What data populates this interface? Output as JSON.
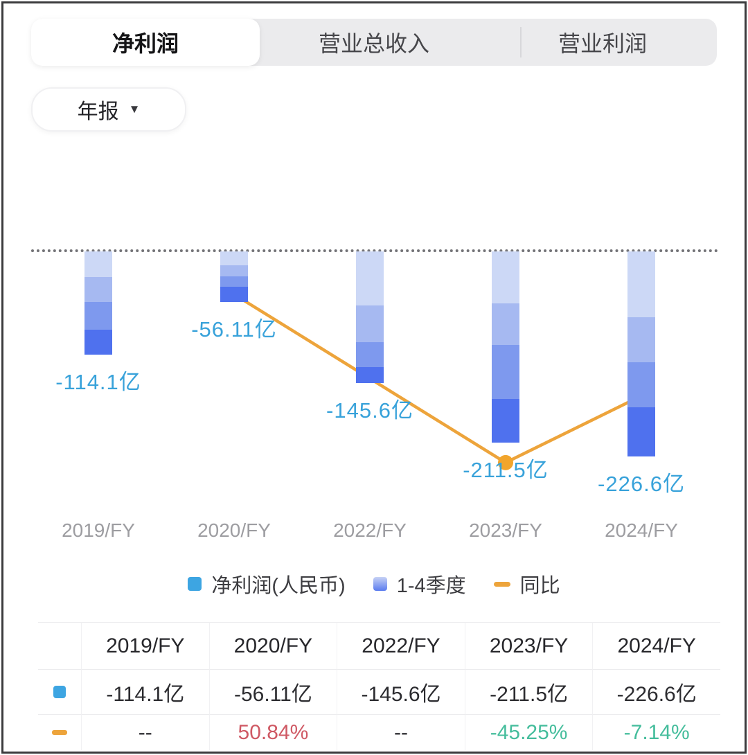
{
  "tabs": [
    {
      "label": "净利润",
      "active": true
    },
    {
      "label": "营业总收入",
      "active": false
    },
    {
      "label": "营业利润",
      "active": false
    }
  ],
  "period_selector": {
    "label": "年报",
    "caret": "▼"
  },
  "chart_data": {
    "type": "bar",
    "categories": [
      "2019/FY",
      "2020/FY",
      "2022/FY",
      "2023/FY",
      "2024/FY"
    ],
    "series": [
      {
        "name": "净利润(人民币)",
        "type": "bar",
        "unit": "亿",
        "values": [
          -114.1,
          -56.11,
          -145.6,
          -211.5,
          -226.6
        ],
        "labels": [
          "-114.1亿",
          "-56.11亿",
          "-145.6亿",
          "-211.5亿",
          "-226.6亿"
        ],
        "quarter_fractions": [
          [
            0.25,
            0.24,
            0.27,
            0.24
          ],
          [
            0.27,
            0.22,
            0.21,
            0.3
          ],
          [
            0.41,
            0.28,
            0.19,
            0.12
          ],
          [
            0.27,
            0.22,
            0.28,
            0.23
          ],
          [
            0.32,
            0.22,
            0.22,
            0.24
          ]
        ]
      },
      {
        "name": "同比",
        "type": "line",
        "unit": "%",
        "values": [
          null,
          50.84,
          null,
          -45.25,
          -7.14
        ],
        "labels": [
          "--",
          "50.84%",
          "--",
          "-45.25%",
          "-7.14%"
        ]
      }
    ],
    "legend": [
      {
        "label": "净利润(人民币)",
        "swatch": "solid-blue"
      },
      {
        "label": "1-4季度",
        "swatch": "gradient-blue"
      },
      {
        "label": "同比",
        "swatch": "orange-dash"
      }
    ],
    "baseline_value": 0,
    "grid": "zero-dashed-line-only",
    "legend_position": "bottom-center"
  },
  "table": {
    "headers": [
      "2019/FY",
      "2020/FY",
      "2022/FY",
      "2023/FY",
      "2024/FY"
    ],
    "rows": [
      {
        "icon": "blue-square",
        "cells": [
          {
            "text": "-114.1亿",
            "tone": "dark"
          },
          {
            "text": "-56.11亿",
            "tone": "dark"
          },
          {
            "text": "-145.6亿",
            "tone": "dark"
          },
          {
            "text": "-211.5亿",
            "tone": "dark"
          },
          {
            "text": "-226.6亿",
            "tone": "dark"
          }
        ]
      },
      {
        "icon": "orange-dash",
        "cells": [
          {
            "text": "--",
            "tone": "dark"
          },
          {
            "text": "50.84%",
            "tone": "red"
          },
          {
            "text": "--",
            "tone": "dark"
          },
          {
            "text": "-45.25%",
            "tone": "green"
          },
          {
            "text": "-7.14%",
            "tone": "green"
          }
        ]
      }
    ]
  },
  "colors": {
    "accent_blue": "#3da5e2",
    "bar_segments_top_to_bottom": [
      "#ccd8f6",
      "#a6b9f1",
      "#7e99ee",
      "#4f71ee"
    ],
    "line_orange": "#eda43b",
    "value_label_blue": "#38a2da",
    "up_red": "#cf5964",
    "down_green": "#45bd9c",
    "axis_gray": "#9d9da1",
    "tabbar_gray": "#ebebed"
  }
}
